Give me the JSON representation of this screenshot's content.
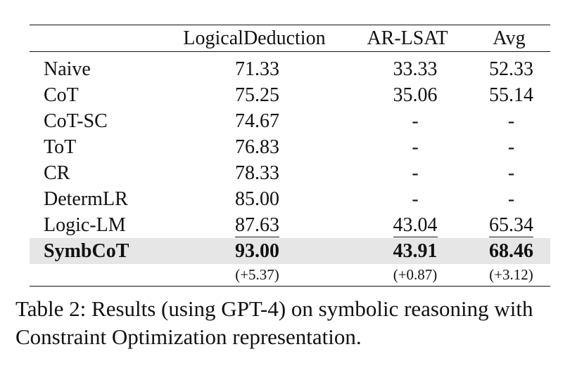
{
  "table": {
    "headers": [
      "",
      "LogicalDeduction",
      "AR-LSAT",
      "Avg"
    ],
    "rows": [
      {
        "method": "Naive",
        "logical_deduction": "71.33",
        "ar_lsat": "33.33",
        "avg": "52.33"
      },
      {
        "method": "CoT",
        "logical_deduction": "75.25",
        "ar_lsat": "35.06",
        "avg": "55.14"
      },
      {
        "method": "CoT-SC",
        "logical_deduction": "74.67",
        "ar_lsat": "-",
        "avg": "-"
      },
      {
        "method": "ToT",
        "logical_deduction": "76.83",
        "ar_lsat": "-",
        "avg": "-"
      },
      {
        "method": "CR",
        "logical_deduction": "78.33",
        "ar_lsat": "-",
        "avg": "-"
      },
      {
        "method": "DetermLR",
        "logical_deduction": "85.00",
        "ar_lsat": "-",
        "avg": "-"
      },
      {
        "method": "Logic-LM",
        "logical_deduction": "87.63",
        "ar_lsat": "43.04",
        "avg": "65.34"
      },
      {
        "method": "SymbCoT",
        "logical_deduction": "93.00",
        "ar_lsat": "43.91",
        "avg": "68.46"
      }
    ],
    "deltas": {
      "logical_deduction": "(+5.37)",
      "ar_lsat": "(+0.87)",
      "avg": "(+3.12)"
    }
  },
  "caption": "Table 2: Results (using GPT-4) on symbolic reasoning with Constraint Optimization representation."
}
